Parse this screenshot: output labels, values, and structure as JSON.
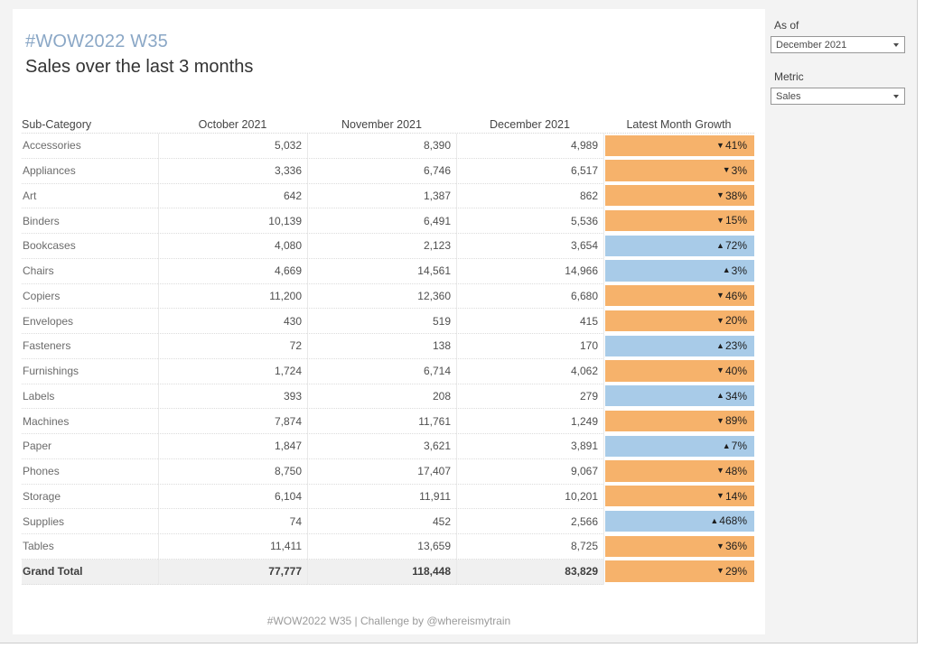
{
  "title": "#WOW2022 W35",
  "subtitle": "Sales over the last 3 months",
  "footer": "#WOW2022 W35 | Challenge by @whereismytrain",
  "filters": {
    "as_of": {
      "label": "As of",
      "value": "December 2021"
    },
    "metric": {
      "label": "Metric",
      "value": "Sales"
    }
  },
  "icons": {
    "up": "▲",
    "down": "▼",
    "dropdown_caret": "caret-down"
  },
  "colors": {
    "growth_up_bg": "#a8cbe8",
    "growth_down_bg": "#f6b26b",
    "title_blue": "#8aa7c6",
    "total_row_bg": "#f0f0f0",
    "page_bg": "#f3f3f3"
  },
  "table": {
    "columns": [
      "Sub-Category",
      "October 2021",
      "November 2021",
      "December 2021",
      "Latest Month Growth"
    ],
    "rows": [
      {
        "label": "Accessories",
        "values": [
          "5,032",
          "8,390",
          "4,989"
        ],
        "growth": {
          "direction": "down",
          "value": "41%"
        }
      },
      {
        "label": "Appliances",
        "values": [
          "3,336",
          "6,746",
          "6,517"
        ],
        "growth": {
          "direction": "down",
          "value": "3%"
        }
      },
      {
        "label": "Art",
        "values": [
          "642",
          "1,387",
          "862"
        ],
        "growth": {
          "direction": "down",
          "value": "38%"
        }
      },
      {
        "label": "Binders",
        "values": [
          "10,139",
          "6,491",
          "5,536"
        ],
        "growth": {
          "direction": "down",
          "value": "15%"
        }
      },
      {
        "label": "Bookcases",
        "values": [
          "4,080",
          "2,123",
          "3,654"
        ],
        "growth": {
          "direction": "up",
          "value": "72%"
        }
      },
      {
        "label": "Chairs",
        "values": [
          "4,669",
          "14,561",
          "14,966"
        ],
        "growth": {
          "direction": "up",
          "value": "3%"
        }
      },
      {
        "label": "Copiers",
        "values": [
          "11,200",
          "12,360",
          "6,680"
        ],
        "growth": {
          "direction": "down",
          "value": "46%"
        }
      },
      {
        "label": "Envelopes",
        "values": [
          "430",
          "519",
          "415"
        ],
        "growth": {
          "direction": "down",
          "value": "20%"
        }
      },
      {
        "label": "Fasteners",
        "values": [
          "72",
          "138",
          "170"
        ],
        "growth": {
          "direction": "up",
          "value": "23%"
        }
      },
      {
        "label": "Furnishings",
        "values": [
          "1,724",
          "6,714",
          "4,062"
        ],
        "growth": {
          "direction": "down",
          "value": "40%"
        }
      },
      {
        "label": "Labels",
        "values": [
          "393",
          "208",
          "279"
        ],
        "growth": {
          "direction": "up",
          "value": "34%"
        }
      },
      {
        "label": "Machines",
        "values": [
          "7,874",
          "11,761",
          "1,249"
        ],
        "growth": {
          "direction": "down",
          "value": "89%"
        }
      },
      {
        "label": "Paper",
        "values": [
          "1,847",
          "3,621",
          "3,891"
        ],
        "growth": {
          "direction": "up",
          "value": "7%"
        }
      },
      {
        "label": "Phones",
        "values": [
          "8,750",
          "17,407",
          "9,067"
        ],
        "growth": {
          "direction": "down",
          "value": "48%"
        }
      },
      {
        "label": "Storage",
        "values": [
          "6,104",
          "11,911",
          "10,201"
        ],
        "growth": {
          "direction": "down",
          "value": "14%"
        }
      },
      {
        "label": "Supplies",
        "values": [
          "74",
          "452",
          "2,566"
        ],
        "growth": {
          "direction": "up",
          "value": "468%"
        }
      },
      {
        "label": "Tables",
        "values": [
          "11,411",
          "13,659",
          "8,725"
        ],
        "growth": {
          "direction": "down",
          "value": "36%"
        }
      },
      {
        "label": "Grand Total",
        "values": [
          "77,777",
          "118,448",
          "83,829"
        ],
        "growth": {
          "direction": "down",
          "value": "29%"
        },
        "is_total": true
      }
    ]
  },
  "chart_data": {
    "type": "table",
    "title": "Sales over the last 3 months",
    "categories": [
      "Accessories",
      "Appliances",
      "Art",
      "Binders",
      "Bookcases",
      "Chairs",
      "Copiers",
      "Envelopes",
      "Fasteners",
      "Furnishings",
      "Labels",
      "Machines",
      "Paper",
      "Phones",
      "Storage",
      "Supplies",
      "Tables"
    ],
    "series": [
      {
        "name": "October 2021",
        "values": [
          5032,
          3336,
          642,
          10139,
          4080,
          4669,
          11200,
          430,
          72,
          1724,
          393,
          7874,
          1847,
          8750,
          6104,
          74,
          11411
        ]
      },
      {
        "name": "November 2021",
        "values": [
          8390,
          6746,
          1387,
          6491,
          2123,
          14561,
          12360,
          519,
          138,
          6714,
          208,
          11761,
          3621,
          17407,
          11911,
          452,
          13659
        ]
      },
      {
        "name": "December 2021",
        "values": [
          4989,
          6517,
          862,
          5536,
          3654,
          14966,
          6680,
          415,
          170,
          4062,
          279,
          1249,
          3891,
          9067,
          10201,
          2566,
          8725
        ]
      },
      {
        "name": "Latest Month Growth %",
        "values": [
          -41,
          -3,
          -38,
          -15,
          72,
          3,
          -46,
          -20,
          23,
          -40,
          34,
          -89,
          7,
          -48,
          -14,
          468,
          -36
        ]
      }
    ],
    "grand_total": {
      "October 2021": 77777,
      "November 2021": 118448,
      "December 2021": 83829,
      "latest_month_growth_pct": -29
    }
  }
}
